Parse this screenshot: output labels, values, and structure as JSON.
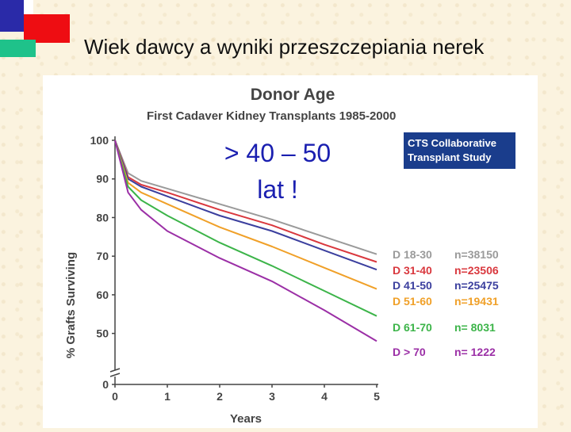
{
  "slide": {
    "title": "Wiek dawcy a wyniki przeszczepiania nerek",
    "overlay_line1": "> 40 – 50",
    "overlay_line2": "lat !"
  },
  "colors": {
    "accent_blue": "#2a2aa8",
    "accent_red": "#ee0d12",
    "accent_green": "#1fc28a",
    "badge_bg": "#1a3d8c"
  },
  "badge": {
    "line1": "CTS Collaborative",
    "line2": "Transplant Study"
  },
  "chart_data": {
    "type": "line",
    "title": "Donor Age",
    "subtitle": "First Cadaver Kidney Transplants 1985-2000",
    "xlabel": "Years",
    "ylabel": "% Grafts Surviving",
    "x_ticks": [
      "0",
      "1",
      "2",
      "3",
      "4",
      "5"
    ],
    "y_ticks": [
      "0",
      "50",
      "60",
      "70",
      "80",
      "90",
      "100"
    ],
    "xlim": [
      0,
      5
    ],
    "ylim": [
      45,
      100
    ],
    "axis_break": true,
    "grid": false,
    "legend_position": "right",
    "x": [
      0,
      0.25,
      0.5,
      1,
      2,
      3,
      4,
      5
    ],
    "series": [
      {
        "label": "D 18-30",
        "n": "n=38150",
        "color": "#9a9a9a",
        "values": [
          100,
          91.5,
          89.5,
          87.5,
          83.5,
          79.5,
          75,
          70.5
        ]
      },
      {
        "label": "D 31-40",
        "n": "n=23506",
        "color": "#d9383e",
        "values": [
          100,
          90.5,
          88.5,
          86.5,
          82,
          78,
          73,
          68.5
        ]
      },
      {
        "label": "D 41-50",
        "n": "n=25475",
        "color": "#3b3f9e",
        "values": [
          100,
          90,
          88,
          85.5,
          80.5,
          76.5,
          71.5,
          66.5
        ]
      },
      {
        "label": "D 51-60",
        "n": "n=19431",
        "color": "#f0a028",
        "values": [
          100,
          89,
          86.5,
          83.5,
          77.5,
          72.5,
          67,
          61.5
        ]
      },
      {
        "label": "D 61-70",
        "n": "n=  8031",
        "color": "#3cb449",
        "values": [
          100,
          88,
          84.5,
          80.5,
          73.5,
          67.5,
          61,
          54.5
        ]
      },
      {
        "label": "D > 70",
        "n": "n=  1222",
        "color": "#9b2fa6",
        "values": [
          100,
          86.5,
          82,
          76.5,
          69.5,
          63.5,
          56,
          48
        ]
      }
    ]
  }
}
